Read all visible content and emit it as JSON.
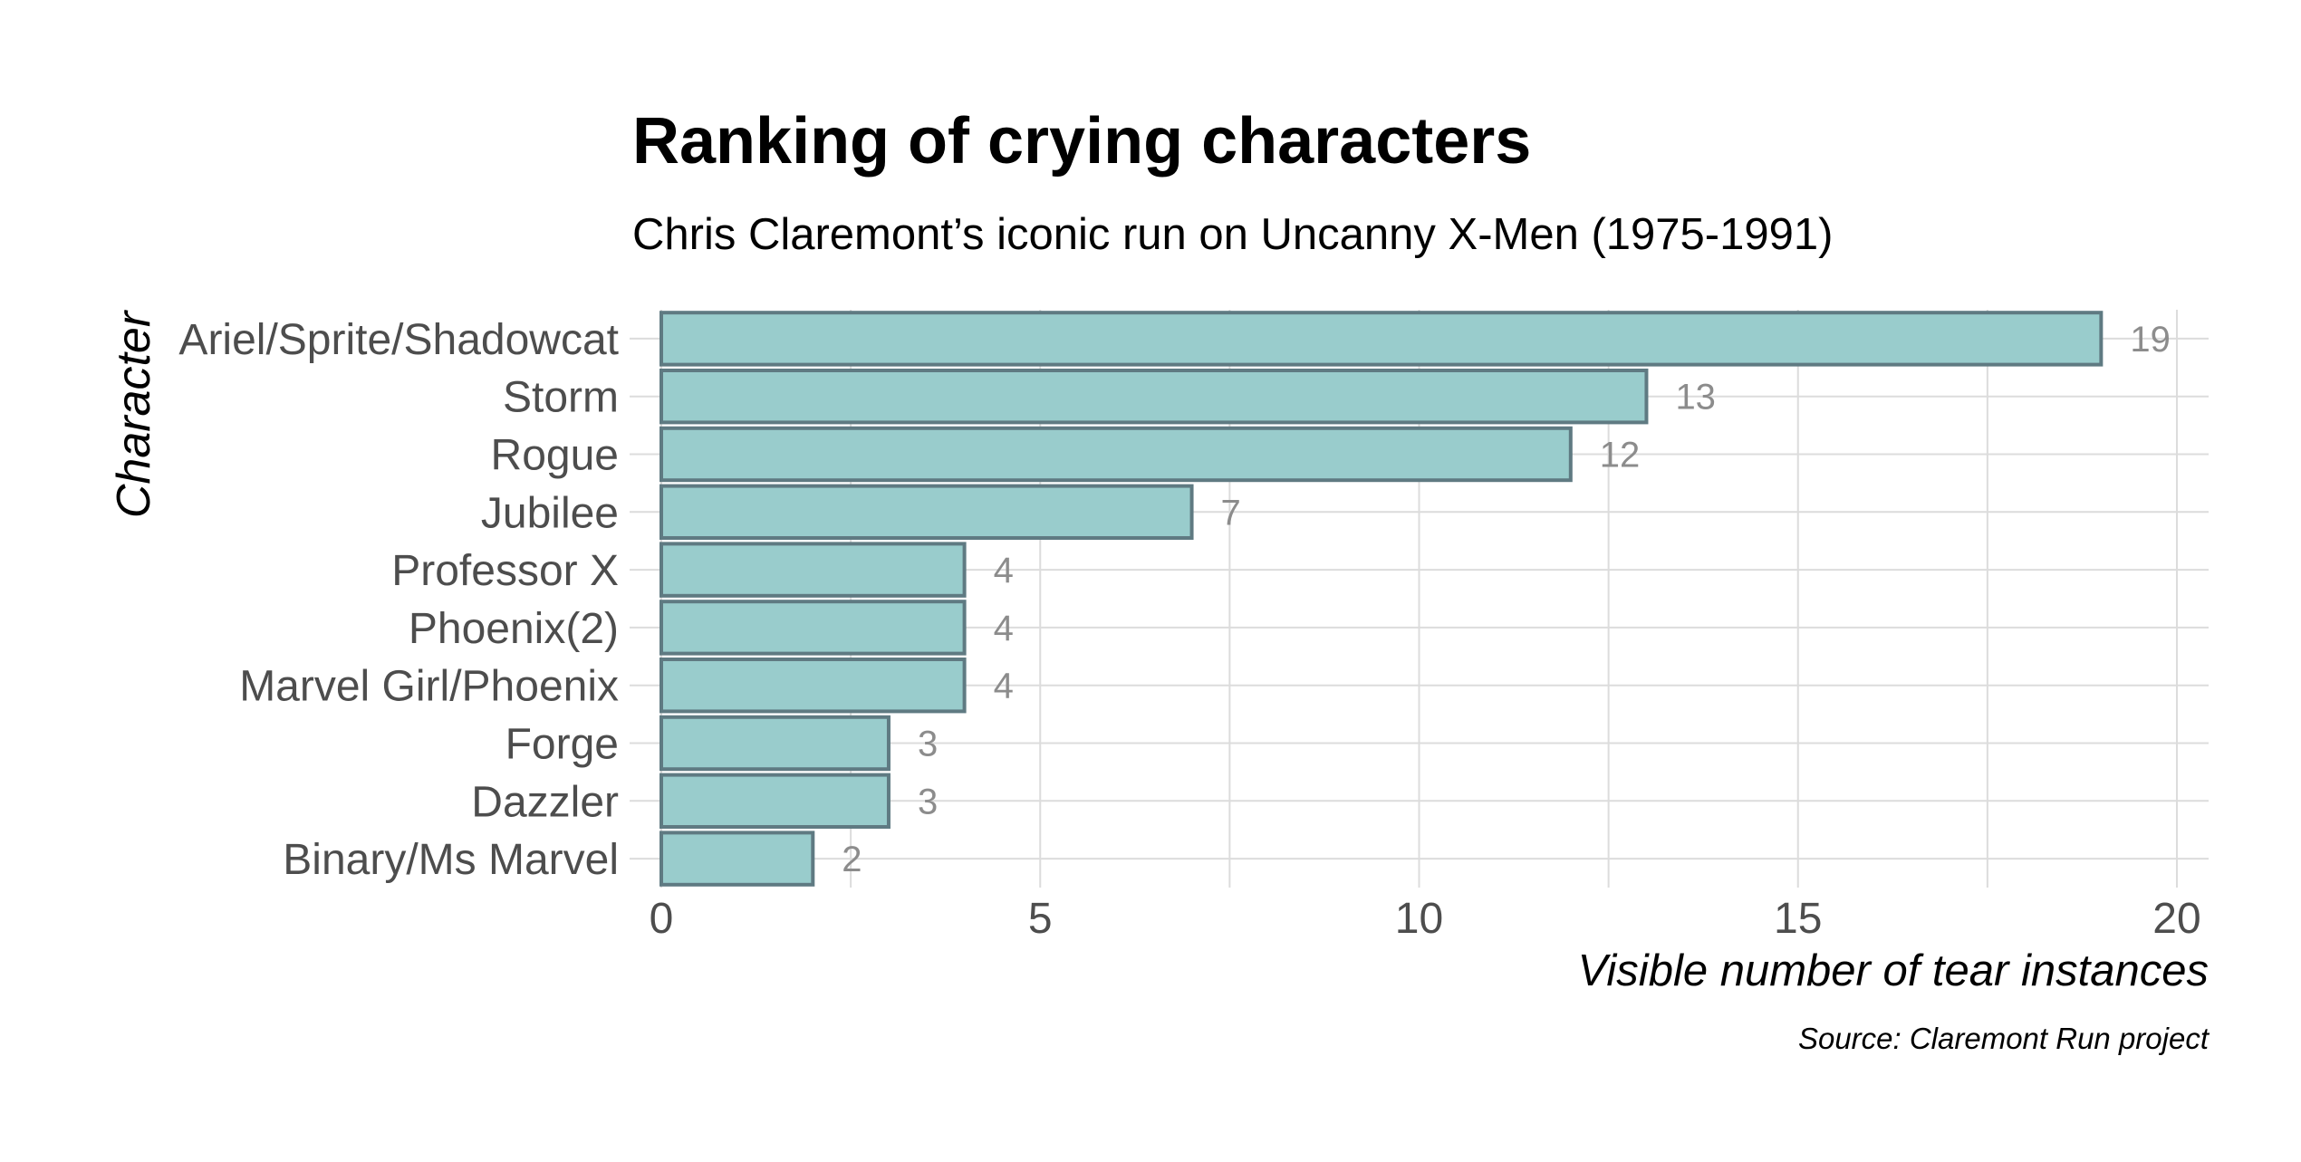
{
  "chart_data": {
    "type": "bar",
    "orientation": "horizontal",
    "title": "Ranking of crying characters",
    "subtitle": "Chris Claremont’s iconic run on Uncanny X-Men (1975-1991)",
    "xlabel": "Visible number of tear instances",
    "ylabel": "Character",
    "caption": "Source: Claremont Run project",
    "categories": [
      "Ariel/Sprite/Shadowcat",
      "Storm",
      "Rogue",
      "Jubilee",
      "Professor X",
      "Phoenix(2)",
      "Marvel Girl/Phoenix",
      "Forge",
      "Dazzler",
      "Binary/Ms Marvel"
    ],
    "values": [
      19,
      13,
      12,
      7,
      4,
      4,
      4,
      3,
      3,
      2
    ],
    "data_labels": [
      "19",
      "13",
      "12",
      "7",
      "4",
      "4",
      "4",
      "3",
      "3",
      "2"
    ],
    "xlim": [
      0,
      20
    ],
    "xticks": [
      0,
      5,
      10,
      15,
      20
    ],
    "xtick_labels": [
      "0",
      "5",
      "10",
      "15",
      "20"
    ],
    "grid": true,
    "legend": "none",
    "colors": {
      "bar_fill": "#99cccc",
      "bar_stroke": "#5f7a82",
      "grid": "#dcdcdc",
      "data_label": "#8c8c8c",
      "tick_label": "#4d4d4d",
      "title": "#000000"
    }
  }
}
